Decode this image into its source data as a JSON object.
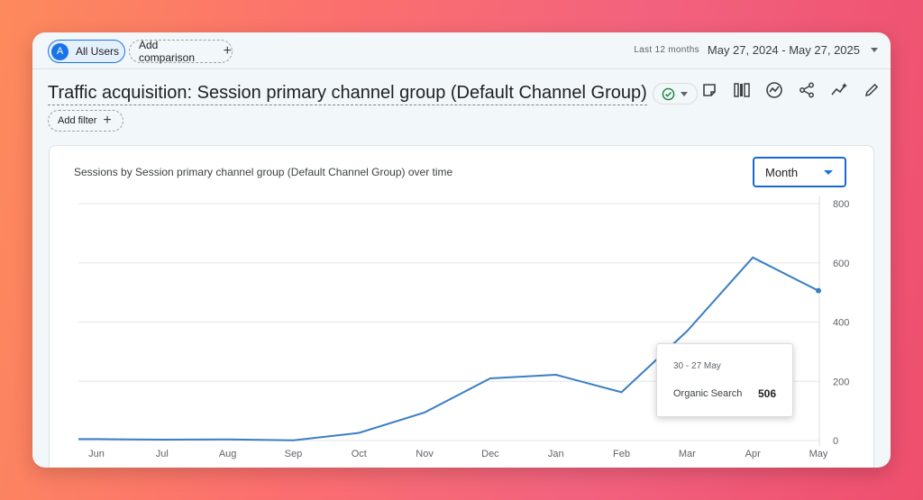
{
  "header": {
    "segment_avatar": "A",
    "segment_label": "All Users",
    "add_comparison_label": "Add comparison",
    "date_range_label": "Last 12 months",
    "date_range_value": "May 27, 2024 - May 27, 2025"
  },
  "report": {
    "title": "Traffic acquisition: Session primary channel group (Default Channel Group)",
    "add_filter_label": "Add filter",
    "toolbar_icons": [
      "notes-icon",
      "compare-columns-icon",
      "insights-icon",
      "share-icon",
      "trend-icon",
      "edit-icon"
    ]
  },
  "card": {
    "title": "Sessions by Session primary channel group (Default Channel Group) over time",
    "period_select": "Month"
  },
  "tooltip": {
    "date": "30 - 27 May",
    "series": "Organic Search",
    "value": "506"
  },
  "colors": {
    "line": "#3a7fc4",
    "accent": "#1a73e8",
    "ok": "#188038"
  },
  "chart_data": {
    "type": "line",
    "categories": [
      "Jun",
      "Jul",
      "Aug",
      "Sep",
      "Oct",
      "Nov",
      "Dec",
      "Jan",
      "Feb",
      "Mar",
      "Apr",
      "May"
    ],
    "series": [
      {
        "name": "Organic Search",
        "values": [
          5,
          3,
          4,
          1,
          26,
          95,
          210,
          222,
          163,
          370,
          618,
          506
        ]
      }
    ],
    "y_ticks": [
      0,
      200,
      400,
      600,
      800
    ],
    "ylim": [
      0,
      800
    ],
    "y_axis_side": "right",
    "grid": true
  }
}
